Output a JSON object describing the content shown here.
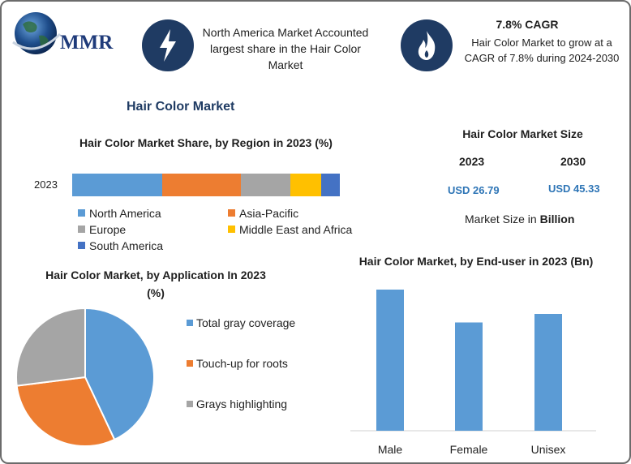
{
  "header": {
    "logo_text": "MMR",
    "box1_text": "North America Market Accounted largest share in the Hair Color Market",
    "box1_icon": "lightning-bolt-icon",
    "box2_title": "7.8% CAGR",
    "box2_text": "Hair Color Market to grow at a CAGR of 7.8% during 2024-2030",
    "box2_icon": "flame-icon"
  },
  "main_title": "Hair Color Market",
  "market_size": {
    "title": "Hair Color Market Size",
    "year1": "2023",
    "year2": "2030",
    "value1": "USD 26.79",
    "value2": "USD 45.33",
    "note_prefix": "Market Size in ",
    "note_unit": "Billion"
  },
  "colors": {
    "north_america": "#5b9bd5",
    "asia_pacific": "#ed7d31",
    "europe": "#a5a5a5",
    "mea": "#ffc000",
    "south_america": "#4472c4",
    "navy": "#1f3b63",
    "value_blue": "#2e75b6"
  },
  "chart_data": [
    {
      "type": "bar",
      "orientation": "horizontal-stacked",
      "title": "Hair Color Market Share, by Region in 2023 (%)",
      "categories": [
        "2023"
      ],
      "series": [
        {
          "name": "North America",
          "values": [
            33.5
          ]
        },
        {
          "name": "Asia-Pacific",
          "values": [
            29.5
          ]
        },
        {
          "name": "Europe",
          "values": [
            18.5
          ]
        },
        {
          "name": "Middle East and Africa",
          "values": [
            11.5
          ]
        },
        {
          "name": "South America",
          "values": [
            7
          ]
        }
      ],
      "legend": "bottom"
    },
    {
      "type": "pie",
      "title": "Hair Color Market, by Application In 2023 (%)",
      "labels": [
        "Total gray coverage",
        "Touch-up for roots",
        "Grays highlighting"
      ],
      "values": [
        43,
        30,
        27
      ],
      "legend": "right"
    },
    {
      "type": "bar",
      "title": "Hair Color Market, by End-user in 2023 (Bn)",
      "categories": [
        "Male",
        "Female",
        "Unisex"
      ],
      "values": [
        11.6,
        8.9,
        9.6
      ],
      "ylim": [
        0,
        12
      ]
    }
  ]
}
